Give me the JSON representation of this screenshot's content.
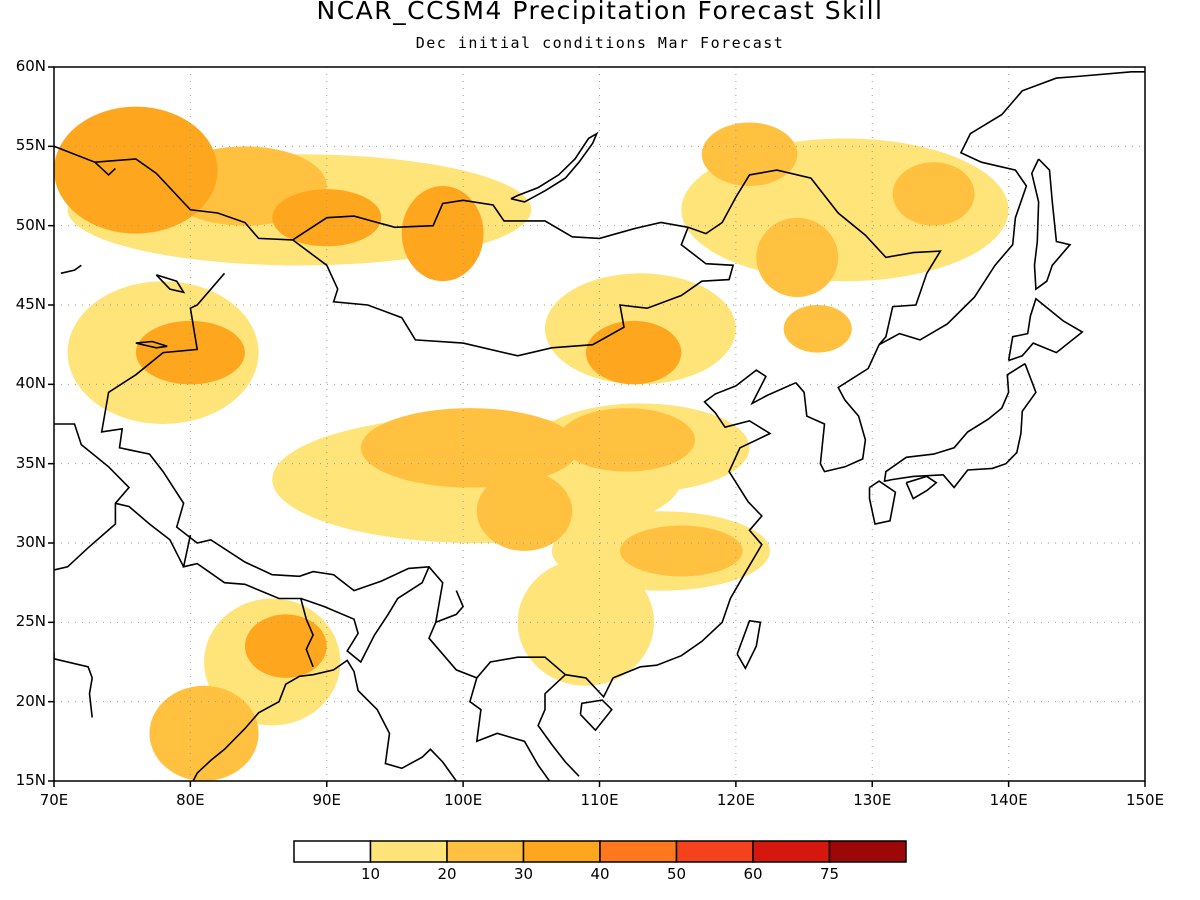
{
  "title": "NCAR_CCSM4 Precipitation Forecast Skill",
  "subtitle": "Dec initial conditions  Mar Forecast",
  "map": {
    "lon_range": [
      70,
      150
    ],
    "lat_range": [
      15,
      60
    ],
    "grid": "dotted",
    "lat_labels": [
      "60N",
      "55N",
      "50N",
      "45N",
      "40N",
      "35N",
      "30N",
      "25N",
      "20N",
      "15N"
    ],
    "lon_labels": [
      "70E",
      "80E",
      "90E",
      "100E",
      "110E",
      "120E",
      "130E",
      "140E",
      "150E"
    ],
    "lat_values": [
      60,
      55,
      50,
      45,
      40,
      35,
      30,
      25,
      20,
      15
    ],
    "lon_values": [
      70,
      80,
      90,
      100,
      110,
      120,
      130,
      140,
      150
    ]
  },
  "colorbar": {
    "levels": [
      "10",
      "20",
      "30",
      "40",
      "50",
      "60",
      "75"
    ],
    "colors": [
      "#ffffff",
      "#ffe479",
      "#ffc13f",
      "#ffa61f",
      "#ff791c",
      "#f6421c",
      "#d6170e",
      "#9e0707"
    ]
  },
  "skill_regions": [
    {
      "name": "western-siberia-west",
      "center": [
        76,
        53.5
      ],
      "radius": [
        6,
        4
      ],
      "level": 3
    },
    {
      "name": "western-siberia-ridge",
      "center": [
        84,
        52.5
      ],
      "radius": [
        6,
        2.5
      ],
      "level": 2
    },
    {
      "name": "altai",
      "center": [
        90,
        50.5
      ],
      "radius": [
        4,
        1.8
      ],
      "level": 3
    },
    {
      "name": "lake-baikal-west",
      "center": [
        98.5,
        49.5
      ],
      "radius": [
        3,
        3
      ],
      "level": 3
    },
    {
      "name": "northwest-band",
      "center": [
        88,
        51
      ],
      "radius": [
        17,
        3.5
      ],
      "level": 1
    },
    {
      "name": "kazakhstan-east",
      "center": [
        80,
        42
      ],
      "radius": [
        4,
        2
      ],
      "level": 3
    },
    {
      "name": "central-asia",
      "center": [
        78,
        42
      ],
      "radius": [
        7,
        4.5
      ],
      "level": 1
    },
    {
      "name": "amur-north",
      "center": [
        121,
        54.5
      ],
      "radius": [
        3.5,
        2
      ],
      "level": 2
    },
    {
      "name": "okhotsk-west",
      "center": [
        134.5,
        52
      ],
      "radius": [
        3,
        2
      ],
      "level": 2
    },
    {
      "name": "northeast-band",
      "center": [
        128,
        51
      ],
      "radius": [
        12,
        4.5
      ],
      "level": 1
    },
    {
      "name": "manchuria",
      "center": [
        124.5,
        48
      ],
      "radius": [
        3,
        2.5
      ],
      "level": 2
    },
    {
      "name": "manchuria-south",
      "center": [
        126,
        43.5
      ],
      "radius": [
        2.5,
        1.5
      ],
      "level": 2
    },
    {
      "name": "inner-mongolia",
      "center": [
        112.5,
        42
      ],
      "radius": [
        3.5,
        2
      ],
      "level": 3
    },
    {
      "name": "inner-mongolia-band",
      "center": [
        113,
        43.5
      ],
      "radius": [
        7,
        3.5
      ],
      "level": 1
    },
    {
      "name": "north-china",
      "center": [
        112,
        36.5
      ],
      "radius": [
        5,
        2
      ],
      "level": 2
    },
    {
      "name": "north-china-band",
      "center": [
        113,
        36
      ],
      "radius": [
        8,
        2.8
      ],
      "level": 1
    },
    {
      "name": "tibet-east",
      "center": [
        100.5,
        36
      ],
      "radius": [
        8,
        2.5
      ],
      "level": 2
    },
    {
      "name": "sichuan",
      "center": [
        104.5,
        32
      ],
      "radius": [
        3.5,
        2.5
      ],
      "level": 2
    },
    {
      "name": "plateau-band",
      "center": [
        101,
        34
      ],
      "radius": [
        15,
        4
      ],
      "level": 1
    },
    {
      "name": "yangtze",
      "center": [
        116,
        29.5
      ],
      "radius": [
        4.5,
        1.6
      ],
      "level": 2
    },
    {
      "name": "yangtze-band",
      "center": [
        114.5,
        29.5
      ],
      "radius": [
        8,
        2.5
      ],
      "level": 1
    },
    {
      "name": "south-china",
      "center": [
        109,
        25
      ],
      "radius": [
        5,
        4
      ],
      "level": 1
    },
    {
      "name": "bengal",
      "center": [
        87,
        23.5
      ],
      "radius": [
        3,
        2
      ],
      "level": 3
    },
    {
      "name": "bengal-band",
      "center": [
        86,
        22.5
      ],
      "radius": [
        5,
        4
      ],
      "level": 1
    },
    {
      "name": "india-east",
      "center": [
        81,
        18
      ],
      "radius": [
        4,
        3
      ],
      "level": 2
    }
  ]
}
